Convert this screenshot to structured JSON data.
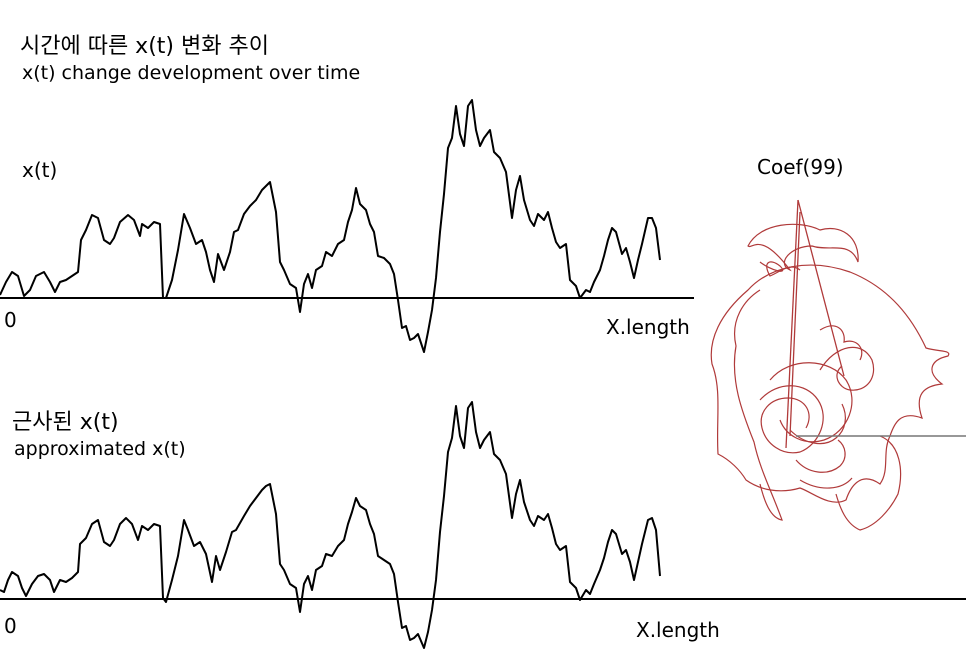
{
  "labels": {
    "title_ko": "시간에 따른 x(t) 변화 추이",
    "title_en": "x(t) change development over time",
    "signal_label": "x(t)",
    "zero_top": "0",
    "xlength_top": "X.length",
    "approx_ko": "근사된 x(t)",
    "approx_en": "approximated x(t)",
    "zero_bottom": "0",
    "xlength_bottom": "X.length",
    "coef_label": "Coef(99)"
  },
  "colors": {
    "signal": "#000000",
    "epicycles": "#b03a3a",
    "pointer": "#777777"
  }
}
